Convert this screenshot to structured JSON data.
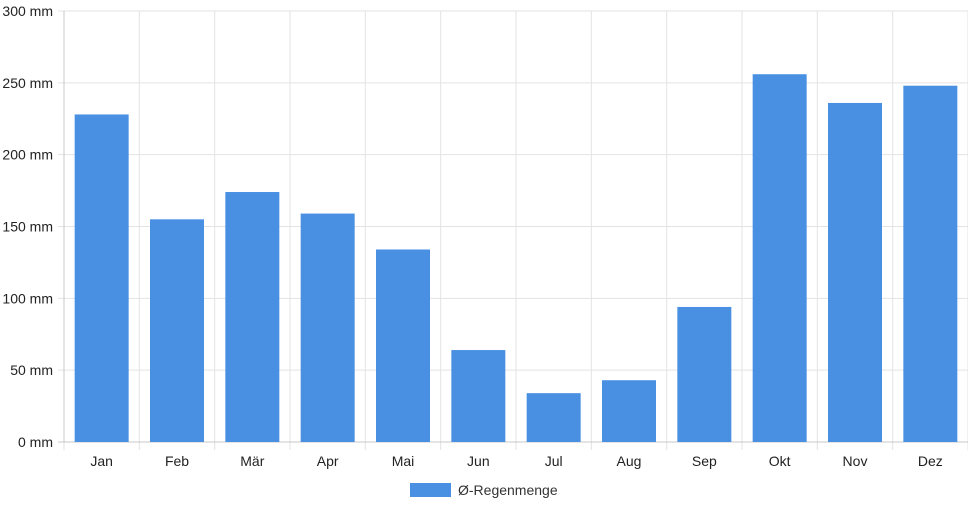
{
  "chart_data": {
    "type": "bar",
    "categories": [
      "Jan",
      "Feb",
      "Mär",
      "Apr",
      "Mai",
      "Jun",
      "Jul",
      "Aug",
      "Sep",
      "Okt",
      "Nov",
      "Dez"
    ],
    "series": [
      {
        "name": "Ø-Regenmenge",
        "values": [
          228,
          155,
          174,
          159,
          134,
          64,
          34,
          43,
          94,
          256,
          236,
          248
        ],
        "color": "#4a90e2"
      }
    ],
    "ylim": [
      0,
      300
    ],
    "yticks": [
      0,
      50,
      100,
      150,
      200,
      250,
      300
    ],
    "ytick_suffix": " mm",
    "grid": true,
    "legend_position": "bottom"
  }
}
